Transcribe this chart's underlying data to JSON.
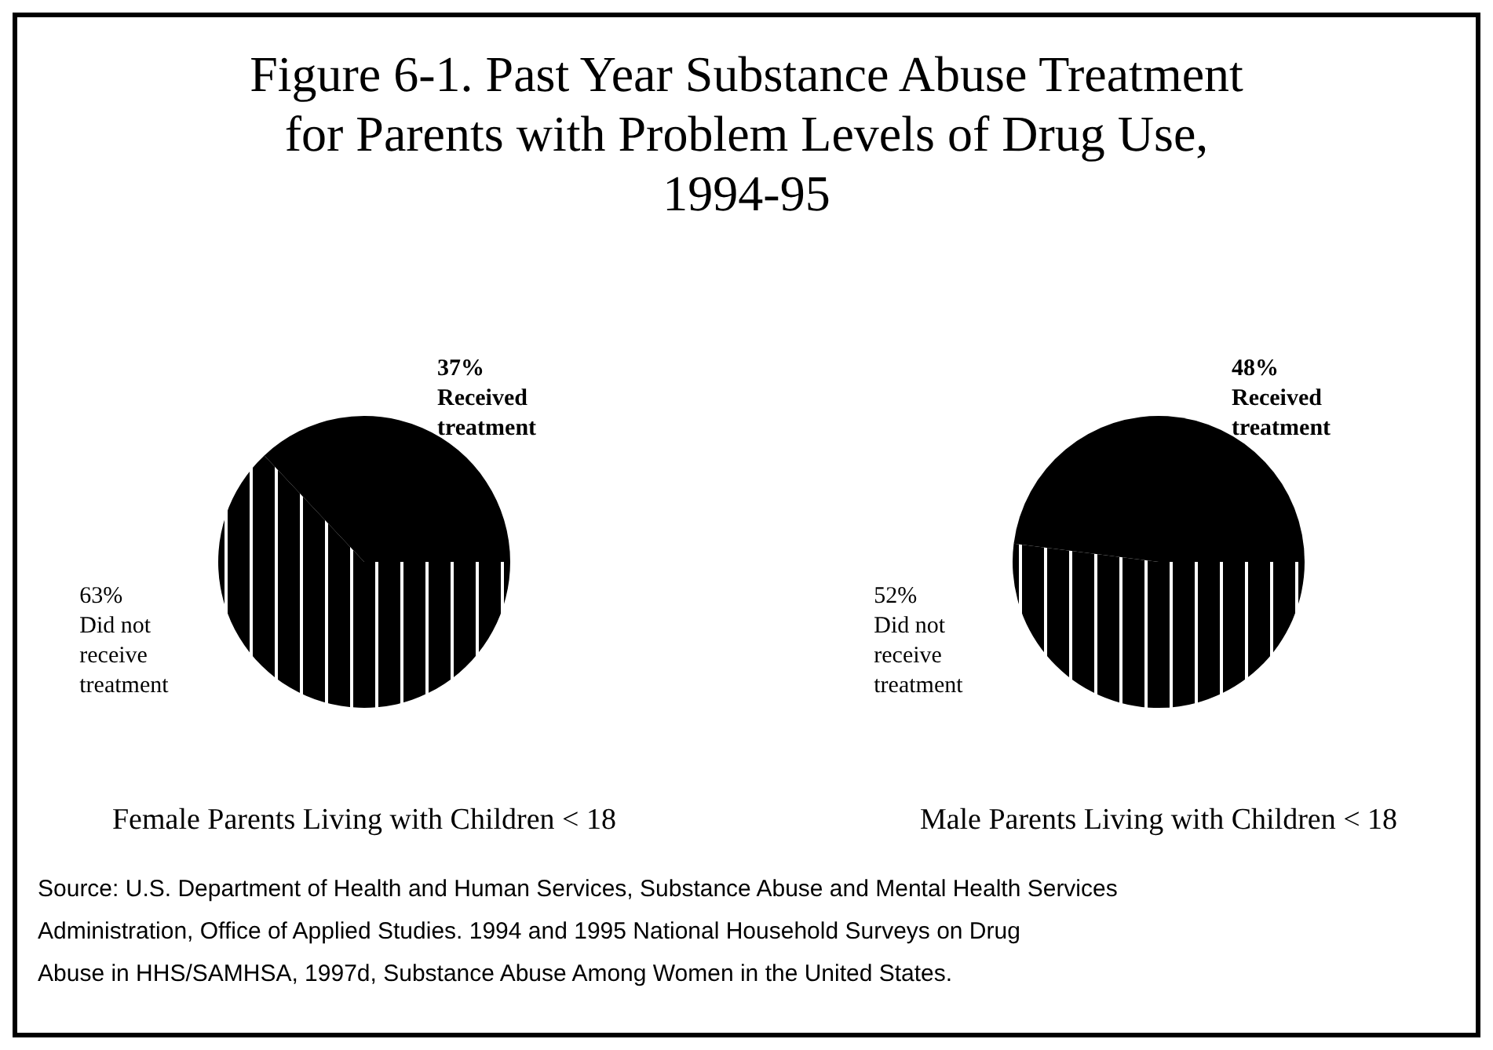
{
  "chart_data": [
    {
      "type": "pie",
      "title": "Figure 6-1.  Past Year Substance Abuse Treatment for Parents with Problem Levels of Drug Use, 1994-95",
      "xlabel": "Female Parents Living with Children < 18",
      "categories": [
        "Did not receive treatment",
        "Received treatment"
      ],
      "values": [
        63,
        37
      ],
      "value_labels": [
        "63%",
        "37%"
      ],
      "colors": [
        "#000000",
        "#000000"
      ],
      "annotations": [
        "Source: U.S. Department of Health and Human Services, Substance Abuse and Mental Health Services Administration, Office of Applied Studies.  1994 and 1995 National Household Surveys on Drug Abuse in HHS/SAMHSA, 1997d, Substance Abuse Among Women in the United States."
      ]
    },
    {
      "type": "pie",
      "xlabel": "Male Parents Living with Children < 18",
      "categories": [
        "Did not receive treatment",
        "Received treatment"
      ],
      "values": [
        52,
        48
      ],
      "value_labels": [
        "52%",
        "48%"
      ],
      "colors": [
        "#000000",
        "#000000"
      ]
    }
  ]
}
